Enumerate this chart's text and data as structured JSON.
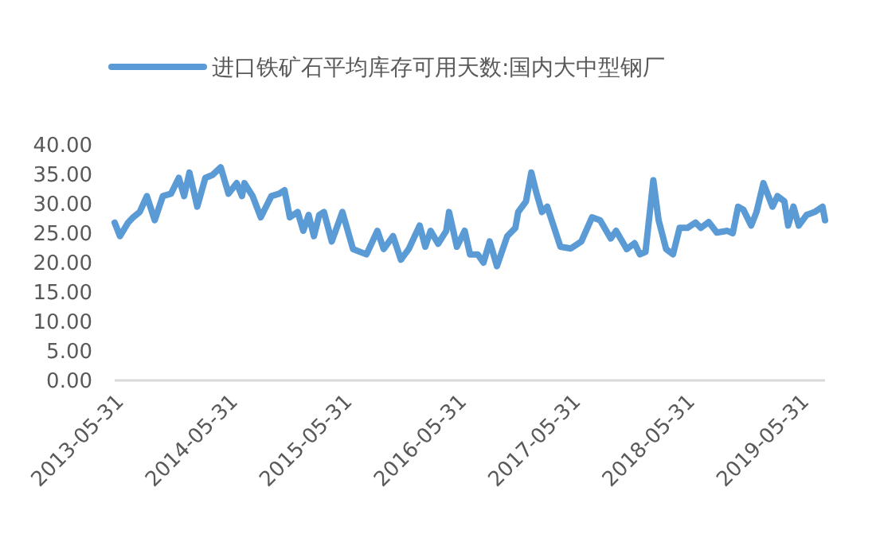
{
  "chart_data": {
    "type": "line",
    "legend": "top",
    "line_style": "solid",
    "xlim": [
      "2013-05-14",
      "2019-08-02"
    ],
    "xticks": [
      {
        "value": "2013-05-31",
        "label": "2013-05-31"
      },
      {
        "value": "2014-05-31",
        "label": "2014-05-31"
      },
      {
        "value": "2015-05-31",
        "label": "2015-05-31"
      },
      {
        "value": "2016-05-31",
        "label": "2016-05-31"
      },
      {
        "value": "2017-05-31",
        "label": "2017-05-31"
      },
      {
        "value": "2018-05-31",
        "label": "2018-05-31"
      },
      {
        "value": "2019-05-31",
        "label": "2019-05-31"
      }
    ],
    "ylim": [
      0,
      40
    ],
    "yticks": [
      {
        "value": 0,
        "label": "0.00"
      },
      {
        "value": 5,
        "label": "5.00"
      },
      {
        "value": 10,
        "label": "10.00"
      },
      {
        "value": 15,
        "label": "15.00"
      },
      {
        "value": 20,
        "label": "20.00"
      },
      {
        "value": 25,
        "label": "25.00"
      },
      {
        "value": 30,
        "label": "30.00"
      },
      {
        "value": 35,
        "label": "35.00"
      },
      {
        "value": 40,
        "label": "40.00"
      }
    ],
    "x": [
      "2013-05-14",
      "2013-05-31",
      "2013-06-26",
      "2013-07-12",
      "2013-08-02",
      "2013-08-25",
      "2013-09-19",
      "2013-10-15",
      "2013-11-10",
      "2013-12-05",
      "2013-12-22",
      "2014-01-08",
      "2014-02-02",
      "2014-02-28",
      "2014-03-23",
      "2014-04-18",
      "2014-05-13",
      "2014-06-08",
      "2014-06-25",
      "2014-07-03",
      "2014-07-29",
      "2014-08-24",
      "2014-09-27",
      "2014-10-22",
      "2014-11-08",
      "2014-11-25",
      "2014-12-20",
      "2015-01-07",
      "2015-01-24",
      "2015-02-10",
      "2015-02-27",
      "2015-03-14",
      "2015-04-08",
      "2015-05-12",
      "2015-06-15",
      "2015-07-28",
      "2015-09-01",
      "2015-09-21",
      "2015-10-21",
      "2015-11-15",
      "2015-12-10",
      "2016-01-14",
      "2016-02-01",
      "2016-02-18",
      "2016-03-13",
      "2016-04-08",
      "2016-04-17",
      "2016-05-12",
      "2016-06-06",
      "2016-06-23",
      "2016-07-18",
      "2016-08-05",
      "2016-08-25",
      "2016-09-17",
      "2016-10-20",
      "2016-11-15",
      "2016-11-24",
      "2016-12-19",
      "2017-01-05",
      "2017-01-22",
      "2017-02-08",
      "2017-02-25",
      "2017-04-08",
      "2017-05-11",
      "2017-06-14",
      "2017-07-18",
      "2017-08-13",
      "2017-09-16",
      "2017-10-03",
      "2017-11-06",
      "2017-12-01",
      "2017-12-18",
      "2018-01-05",
      "2018-01-30",
      "2018-02-16",
      "2018-03-12",
      "2018-04-03",
      "2018-04-24",
      "2018-05-19",
      "2018-06-14",
      "2018-07-01",
      "2018-07-26",
      "2018-08-21",
      "2018-09-24",
      "2018-10-11",
      "2018-10-28",
      "2018-11-14",
      "2018-12-09",
      "2018-12-26",
      "2019-01-17",
      "2019-02-15",
      "2019-03-03",
      "2019-03-25",
      "2019-04-06",
      "2019-04-23",
      "2019-05-10",
      "2019-06-04",
      "2019-06-30",
      "2019-07-25",
      "2019-08-02"
    ],
    "series": [
      {
        "name": "进口铁矿石平均库存可用天数:国内大中型钢厂",
        "color": "#5b9bd5",
        "values": [
          26.8,
          24.5,
          26.8,
          27.7,
          28.6,
          31.3,
          27.2,
          31.3,
          31.7,
          34.4,
          31.3,
          35.3,
          29.5,
          34.4,
          34.9,
          36.2,
          31.7,
          33.5,
          31.3,
          33.5,
          31.3,
          27.7,
          31.3,
          31.7,
          32.3,
          27.7,
          28.6,
          25.4,
          28.1,
          24.5,
          28.1,
          28.6,
          23.6,
          28.6,
          22.3,
          21.4,
          25.4,
          22.3,
          24.5,
          20.5,
          22.3,
          26.3,
          22.7,
          25.4,
          23.2,
          25.4,
          28.6,
          22.7,
          25.4,
          21.4,
          21.4,
          20.0,
          23.6,
          19.4,
          24.5,
          25.9,
          28.6,
          30.4,
          35.3,
          31.7,
          28.6,
          29.5,
          22.7,
          22.4,
          23.6,
          27.7,
          27.2,
          24.1,
          25.4,
          22.3,
          23.3,
          21.4,
          21.8,
          34.0,
          27.2,
          22.3,
          21.4,
          25.9,
          25.9,
          26.8,
          25.9,
          26.9,
          25.1,
          25.4,
          25.0,
          29.5,
          29.0,
          26.3,
          28.6,
          33.5,
          29.5,
          31.3,
          30.4,
          26.3,
          29.5,
          26.3,
          28.1,
          28.6,
          29.5,
          27.2
        ]
      }
    ]
  }
}
